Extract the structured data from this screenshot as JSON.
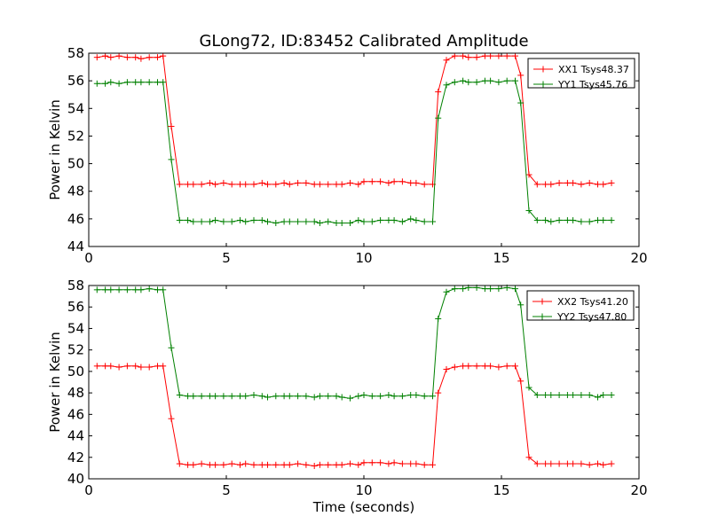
{
  "chart_data": [
    {
      "type": "line",
      "title": "GLong72, ID:83452 Calibrated Amplitude",
      "xlabel": "",
      "ylabel": "Power in Kelvin",
      "xlim": [
        0,
        20
      ],
      "ylim": [
        44,
        58
      ],
      "xticks": [
        "0",
        "5",
        "10",
        "15",
        "20"
      ],
      "yticks": [
        "44",
        "46",
        "48",
        "50",
        "52",
        "54",
        "56",
        "58"
      ],
      "legend_position": "top-right",
      "x": [
        0.3,
        0.6,
        0.8,
        1.1,
        1.4,
        1.7,
        1.9,
        2.2,
        2.5,
        2.7,
        3.0,
        3.3,
        3.6,
        3.8,
        4.1,
        4.4,
        4.6,
        4.9,
        5.2,
        5.5,
        5.7,
        6.0,
        6.3,
        6.5,
        6.8,
        7.1,
        7.3,
        7.6,
        7.9,
        8.2,
        8.4,
        8.7,
        9.0,
        9.2,
        9.5,
        9.8,
        10.0,
        10.3,
        10.6,
        10.9,
        11.1,
        11.4,
        11.7,
        11.9,
        12.2,
        12.5,
        12.7,
        13.0,
        13.3,
        13.6,
        13.8,
        14.1,
        14.4,
        14.6,
        14.9,
        15.2,
        15.5,
        15.7,
        16.0,
        16.3,
        16.6,
        16.8,
        17.1,
        17.4,
        17.6,
        17.9,
        18.2,
        18.5,
        18.7,
        19.0
      ],
      "series": [
        {
          "name": "XX1 Tsys48.37",
          "color": "#ff0000",
          "values": [
            57.7,
            57.8,
            57.7,
            57.8,
            57.7,
            57.7,
            57.6,
            57.7,
            57.7,
            57.8,
            52.7,
            48.5,
            48.5,
            48.5,
            48.5,
            48.6,
            48.5,
            48.6,
            48.5,
            48.5,
            48.5,
            48.5,
            48.6,
            48.5,
            48.5,
            48.6,
            48.5,
            48.6,
            48.6,
            48.5,
            48.5,
            48.5,
            48.5,
            48.5,
            48.6,
            48.5,
            48.7,
            48.7,
            48.7,
            48.6,
            48.7,
            48.7,
            48.6,
            48.6,
            48.5,
            48.5,
            55.2,
            57.5,
            57.8,
            57.8,
            57.7,
            57.7,
            57.8,
            57.8,
            57.8,
            57.8,
            57.8,
            56.4,
            49.2,
            48.5,
            48.5,
            48.5,
            48.6,
            48.6,
            48.6,
            48.5,
            48.6,
            48.5,
            48.5,
            48.6
          ]
        },
        {
          "name": "YY1 Tsys45.76",
          "color": "#008000",
          "values": [
            55.8,
            55.8,
            55.9,
            55.8,
            55.9,
            55.9,
            55.9,
            55.9,
            55.9,
            55.9,
            50.3,
            45.9,
            45.9,
            45.8,
            45.8,
            45.8,
            45.9,
            45.8,
            45.8,
            45.9,
            45.8,
            45.9,
            45.9,
            45.8,
            45.7,
            45.8,
            45.8,
            45.8,
            45.8,
            45.8,
            45.7,
            45.8,
            45.7,
            45.7,
            45.7,
            45.9,
            45.8,
            45.8,
            45.9,
            45.9,
            45.9,
            45.8,
            46.0,
            45.9,
            45.8,
            45.8,
            53.3,
            55.7,
            55.9,
            56.0,
            55.9,
            55.9,
            56.0,
            56.0,
            55.9,
            56.0,
            56.0,
            54.4,
            46.6,
            45.9,
            45.9,
            45.8,
            45.9,
            45.9,
            45.9,
            45.8,
            45.8,
            45.9,
            45.9,
            45.9
          ]
        }
      ]
    },
    {
      "type": "line",
      "title": "",
      "xlabel": "Time (seconds)",
      "ylabel": "Power in Kelvin",
      "xlim": [
        0,
        20
      ],
      "ylim": [
        40,
        58
      ],
      "xticks": [
        "0",
        "5",
        "10",
        "15",
        "20"
      ],
      "yticks": [
        "40",
        "42",
        "44",
        "46",
        "48",
        "50",
        "52",
        "54",
        "56",
        "58"
      ],
      "legend_position": "top-right",
      "x": [
        0.3,
        0.6,
        0.8,
        1.1,
        1.4,
        1.7,
        1.9,
        2.2,
        2.5,
        2.7,
        3.0,
        3.3,
        3.6,
        3.8,
        4.1,
        4.4,
        4.6,
        4.9,
        5.2,
        5.5,
        5.7,
        6.0,
        6.3,
        6.5,
        6.8,
        7.1,
        7.3,
        7.6,
        7.9,
        8.2,
        8.4,
        8.7,
        9.0,
        9.2,
        9.5,
        9.8,
        10.0,
        10.3,
        10.6,
        10.9,
        11.1,
        11.4,
        11.7,
        11.9,
        12.2,
        12.5,
        12.7,
        13.0,
        13.3,
        13.6,
        13.8,
        14.1,
        14.4,
        14.6,
        14.9,
        15.2,
        15.5,
        15.7,
        16.0,
        16.3,
        16.6,
        16.8,
        17.1,
        17.4,
        17.6,
        17.9,
        18.2,
        18.5,
        18.7,
        19.0
      ],
      "series": [
        {
          "name": "XX2 Tsys41.20",
          "color": "#ff0000",
          "values": [
            50.5,
            50.5,
            50.5,
            50.4,
            50.5,
            50.5,
            50.4,
            50.4,
            50.5,
            50.5,
            45.6,
            41.4,
            41.3,
            41.3,
            41.4,
            41.3,
            41.3,
            41.3,
            41.4,
            41.3,
            41.4,
            41.3,
            41.3,
            41.3,
            41.3,
            41.3,
            41.3,
            41.4,
            41.3,
            41.2,
            41.3,
            41.3,
            41.3,
            41.3,
            41.4,
            41.3,
            41.5,
            41.5,
            41.5,
            41.4,
            41.5,
            41.4,
            41.4,
            41.4,
            41.3,
            41.3,
            48.0,
            50.2,
            50.4,
            50.5,
            50.5,
            50.5,
            50.5,
            50.5,
            50.4,
            50.5,
            50.5,
            49.1,
            42.0,
            41.4,
            41.4,
            41.4,
            41.4,
            41.4,
            41.4,
            41.4,
            41.3,
            41.4,
            41.3,
            41.4
          ]
        },
        {
          "name": "YY2 Tsys47.80",
          "color": "#008000",
          "values": [
            57.6,
            57.6,
            57.6,
            57.6,
            57.6,
            57.6,
            57.6,
            57.7,
            57.6,
            57.6,
            52.2,
            47.8,
            47.7,
            47.7,
            47.7,
            47.7,
            47.7,
            47.7,
            47.7,
            47.7,
            47.7,
            47.8,
            47.7,
            47.6,
            47.7,
            47.7,
            47.7,
            47.7,
            47.7,
            47.6,
            47.7,
            47.7,
            47.7,
            47.6,
            47.5,
            47.7,
            47.8,
            47.7,
            47.7,
            47.8,
            47.7,
            47.7,
            47.8,
            47.8,
            47.7,
            47.7,
            54.9,
            57.4,
            57.7,
            57.7,
            57.8,
            57.8,
            57.7,
            57.7,
            57.7,
            57.8,
            57.7,
            56.2,
            48.5,
            47.8,
            47.8,
            47.8,
            47.8,
            47.8,
            47.8,
            47.8,
            47.8,
            47.6,
            47.8,
            47.8
          ]
        }
      ]
    }
  ]
}
